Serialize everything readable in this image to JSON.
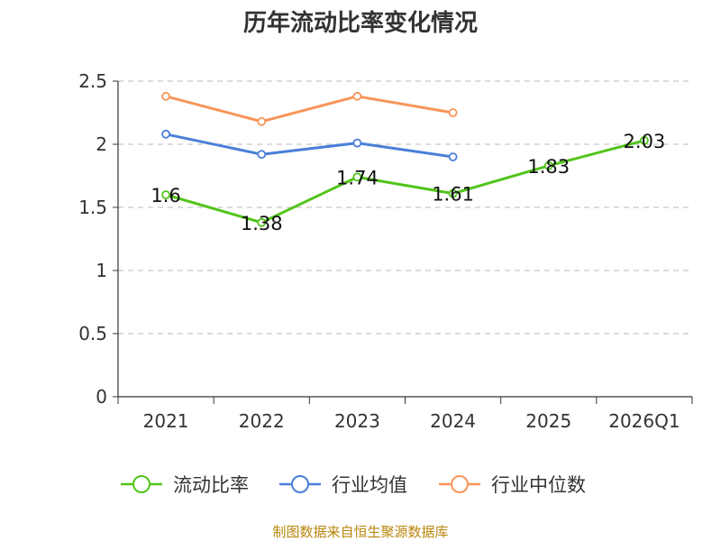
{
  "chart_data": {
    "type": "line",
    "title": "历年流动比率变化情况",
    "categories": [
      "2021",
      "2022",
      "2023",
      "2024",
      "2025",
      "2026Q1"
    ],
    "ylim": [
      0,
      2.5
    ],
    "yticks": [
      "0",
      "0.5",
      "1",
      "1.5",
      "2",
      "2.5"
    ],
    "grid": true,
    "legend": "bottom",
    "series": [
      {
        "name": "流动比率",
        "color": "#52c41a",
        "values": [
          1.6,
          1.38,
          1.74,
          1.61,
          1.83,
          2.03
        ],
        "labels": [
          "1.6",
          "1.38",
          "1.74",
          "1.61",
          "1.83",
          "2.03"
        ]
      },
      {
        "name": "行业均值",
        "color": "#4a7fd8",
        "values": [
          2.08,
          1.92,
          2.01,
          1.9,
          null,
          null
        ]
      },
      {
        "name": "行业中位数",
        "color": "#f79559",
        "values": [
          2.38,
          2.18,
          2.38,
          2.25,
          null,
          null
        ]
      }
    ],
    "source": "制图数据来自恒生聚源数据库"
  }
}
